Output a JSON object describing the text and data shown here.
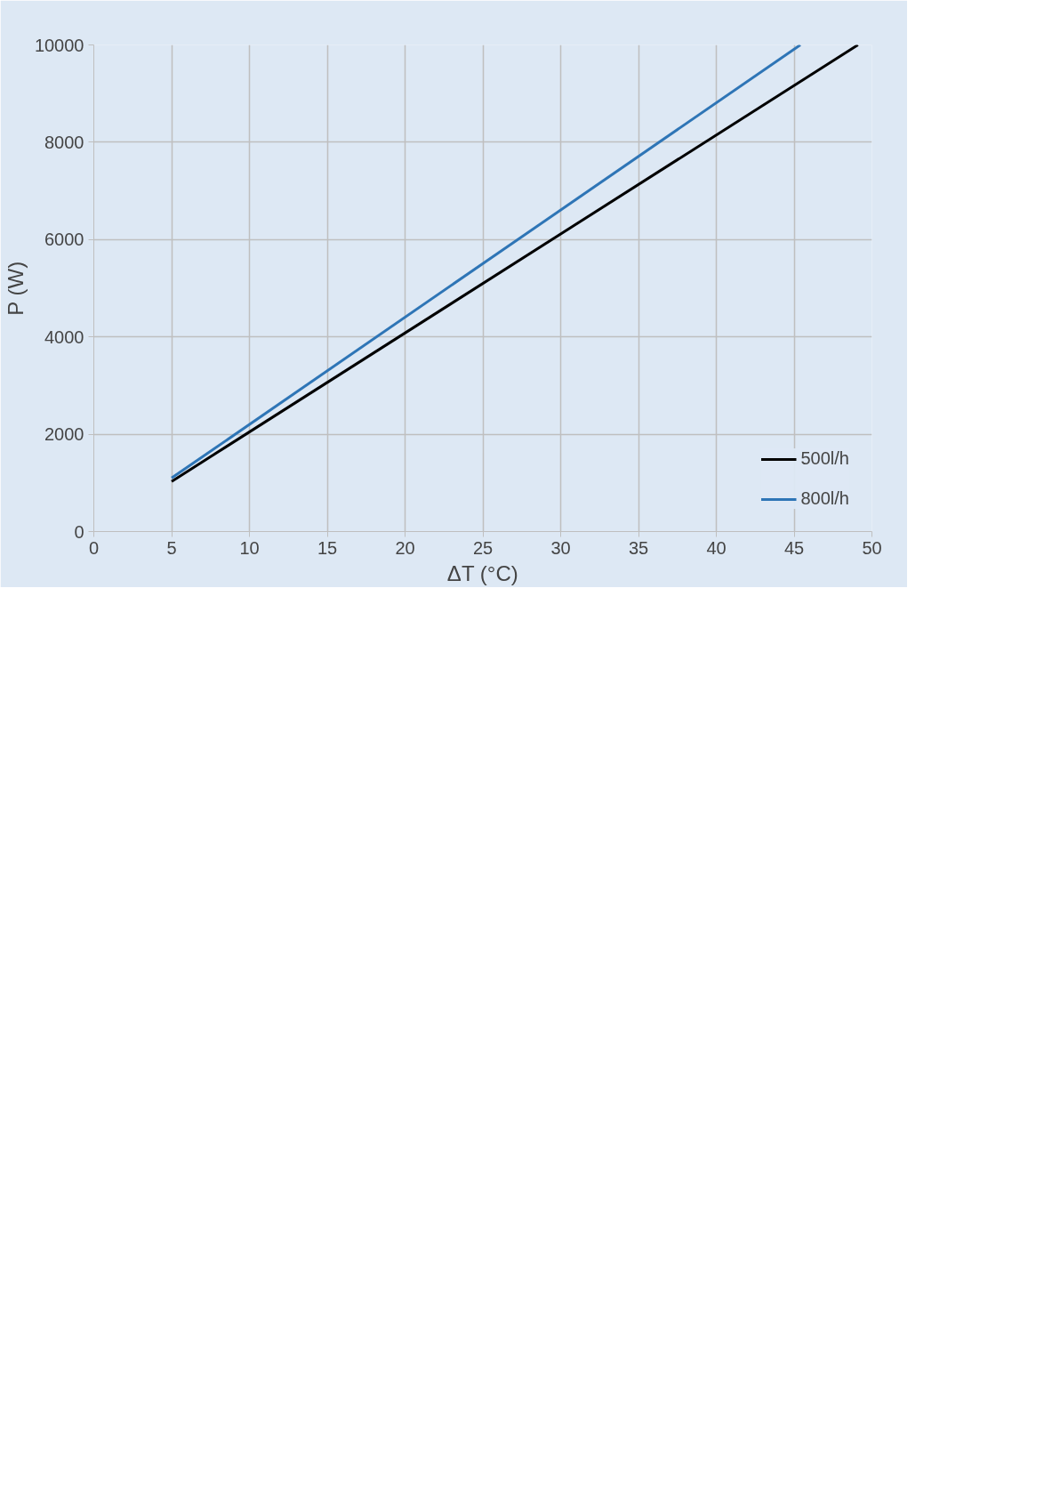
{
  "chart_data": {
    "type": "line",
    "xlabel": "ΔT (°C)",
    "ylabel": "P (W)",
    "xlim": [
      0,
      50
    ],
    "ylim": [
      0,
      10000
    ],
    "xticks": [
      0,
      5,
      10,
      15,
      20,
      25,
      30,
      35,
      40,
      45,
      50
    ],
    "yticks": [
      0,
      2000,
      4000,
      6000,
      8000,
      10000
    ],
    "grid": true,
    "legend": "bottom right",
    "marker": "none",
    "line_style": "solid",
    "series": [
      {
        "name": "500l/h",
        "color": "#000000",
        "x": [
          5,
          49.1
        ],
        "values": [
          1030,
          10000
        ]
      },
      {
        "name": "800l/h",
        "color": "#2e75b6",
        "x": [
          5,
          45.4
        ],
        "values": [
          1100,
          10000
        ]
      }
    ]
  }
}
